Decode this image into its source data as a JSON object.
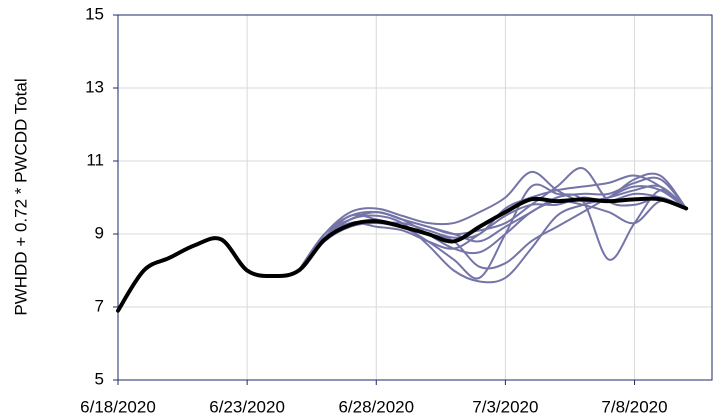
{
  "chart_data": {
    "type": "line",
    "y_label": "PWHDD  +  0.72 * PWCDD Total",
    "x": [
      "6/18/2020",
      "6/19/2020",
      "6/20/2020",
      "6/21/2020",
      "6/22/2020",
      "6/23/2020",
      "6/24/2020",
      "6/25/2020",
      "6/26/2020",
      "6/27/2020",
      "6/28/2020",
      "6/29/2020",
      "6/30/2020",
      "7/1/2020",
      "7/2/2020",
      "7/3/2020",
      "7/4/2020",
      "7/5/2020",
      "7/6/2020",
      "7/7/2020",
      "7/8/2020",
      "7/9/2020",
      "7/10/2020"
    ],
    "xlim": [
      "6/18/2020",
      "7/11/2020"
    ],
    "xticks": [
      "6/18/2020",
      "6/23/2020",
      "6/28/2020",
      "7/3/2020",
      "7/8/2020"
    ],
    "ylim": [
      5,
      15
    ],
    "yticks": [
      5,
      7,
      9,
      11,
      13,
      15
    ],
    "grid": true,
    "series": [
      {
        "color": "#7474a8",
        "width": 2,
        "values": [
          null,
          null,
          null,
          null,
          null,
          null,
          null,
          8.0,
          9.0,
          9.6,
          9.7,
          9.5,
          9.3,
          9.3,
          9.6,
          10.0,
          10.7,
          10.2,
          9.9,
          10.0,
          10.2,
          10.3,
          9.7
        ]
      },
      {
        "color": "#7474a8",
        "width": 2,
        "values": [
          null,
          null,
          null,
          null,
          null,
          null,
          null,
          8.0,
          8.9,
          9.4,
          9.5,
          9.3,
          8.7,
          8.0,
          7.7,
          7.8,
          8.6,
          9.5,
          9.8,
          10.0,
          10.5,
          10.6,
          9.7
        ]
      },
      {
        "color": "#7474a8",
        "width": 2,
        "values": [
          null,
          null,
          null,
          null,
          null,
          null,
          null,
          8.0,
          8.9,
          9.5,
          9.4,
          9.2,
          8.8,
          8.3,
          7.8,
          9.0,
          10.3,
          10.1,
          9.9,
          8.3,
          9.3,
          10.2,
          9.7
        ]
      },
      {
        "color": "#7474a8",
        "width": 2,
        "values": [
          null,
          null,
          null,
          null,
          null,
          null,
          null,
          8.0,
          8.9,
          9.3,
          9.3,
          9.3,
          9.1,
          8.9,
          9.0,
          9.7,
          10.0,
          10.2,
          10.3,
          10.4,
          10.6,
          10.3,
          9.7
        ]
      },
      {
        "color": "#7474a8",
        "width": 2,
        "values": [
          null,
          null,
          null,
          null,
          null,
          null,
          null,
          8.0,
          9.0,
          9.5,
          9.6,
          9.4,
          9.0,
          8.6,
          8.5,
          9.0,
          9.6,
          9.9,
          9.8,
          9.6,
          9.3,
          9.9,
          9.7
        ]
      },
      {
        "color": "#7474a8",
        "width": 2,
        "values": [
          null,
          null,
          null,
          null,
          null,
          null,
          null,
          8.0,
          8.9,
          9.3,
          9.2,
          9.1,
          8.8,
          8.6,
          9.0,
          9.5,
          9.8,
          9.8,
          10.0,
          9.9,
          10.1,
          10.0,
          9.7
        ]
      },
      {
        "color": "#7474a8",
        "width": 2,
        "values": [
          null,
          null,
          null,
          null,
          null,
          null,
          null,
          8.0,
          9.0,
          9.4,
          9.6,
          9.4,
          9.2,
          9.0,
          8.8,
          9.2,
          9.6,
          10.0,
          10.1,
          10.1,
          10.4,
          10.5,
          9.7
        ]
      },
      {
        "color": "#7474a8",
        "width": 2,
        "values": [
          null,
          null,
          null,
          null,
          null,
          null,
          null,
          8.0,
          8.8,
          9.2,
          9.3,
          9.2,
          9.0,
          8.8,
          8.1,
          8.2,
          8.8,
          9.2,
          9.6,
          10.0,
          10.3,
          10.2,
          9.7
        ]
      },
      {
        "color": "#7474a8",
        "width": 2,
        "values": [
          null,
          null,
          null,
          null,
          null,
          null,
          null,
          8.0,
          8.9,
          9.4,
          9.6,
          9.4,
          9.2,
          9.0,
          9.1,
          9.3,
          9.8,
          10.3,
          10.8,
          9.9,
          9.8,
          10.0,
          9.7
        ]
      },
      {
        "color": "#000000",
        "width": 4,
        "values": [
          6.9,
          8.0,
          8.35,
          8.7,
          8.85,
          8.0,
          7.85,
          8.0,
          8.85,
          9.25,
          9.35,
          9.2,
          9.0,
          8.8,
          9.2,
          9.6,
          9.95,
          9.9,
          9.95,
          9.9,
          9.95,
          9.95,
          9.7
        ]
      }
    ]
  }
}
